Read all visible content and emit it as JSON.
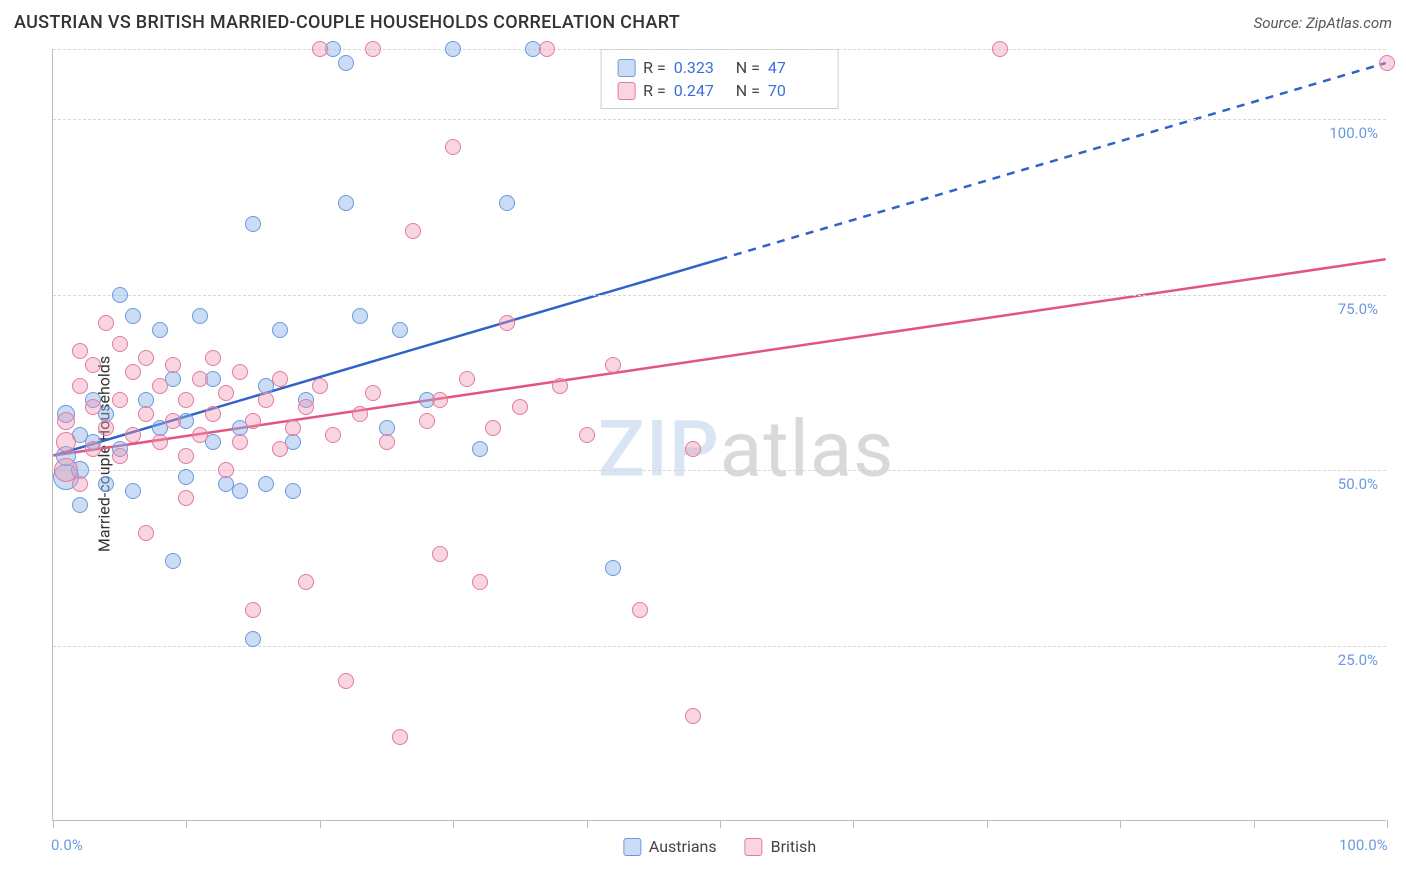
{
  "header": {
    "title": "AUSTRIAN VS BRITISH MARRIED-COUPLE HOUSEHOLDS CORRELATION CHART",
    "source": "Source: ZipAtlas.com"
  },
  "chart": {
    "type": "scatter",
    "ylabel": "Married-couple Households",
    "xlim": [
      0,
      100
    ],
    "ylim": [
      0,
      110
    ],
    "x_ticks": [
      0,
      10,
      20,
      30,
      40,
      50,
      60,
      70,
      80,
      90,
      100
    ],
    "x_tick_labels_shown": {
      "0": "0.0%",
      "100": "100.0%"
    },
    "y_gridlines": [
      25,
      50,
      75,
      100,
      110
    ],
    "y_tick_labels": {
      "25": "25.0%",
      "50": "50.0%",
      "75": "75.0%",
      "100": "100.0%"
    },
    "background_color": "#ffffff",
    "grid_color": "#d8d8d8",
    "axis_color": "#bdbdbd",
    "label_fontsize": 16,
    "tick_label_color": "#6b99e2",
    "marker_radius_range": [
      7,
      13
    ],
    "series": [
      {
        "name": "Austrians",
        "fill_color": "rgba(138,180,232,0.45)",
        "stroke_color": "#6b99e2",
        "line_color": "#2f63c7",
        "line_width": 2.5,
        "trend": {
          "x0": 0,
          "y0": 52,
          "x1_solid": 50,
          "y1_solid": 80,
          "x1": 100,
          "y1": 108,
          "dashed_from": 50
        },
        "R": "0.323",
        "N": "47",
        "points": [
          [
            1,
            49,
            13
          ],
          [
            1,
            52,
            10
          ],
          [
            1,
            58,
            9
          ],
          [
            2,
            55,
            8
          ],
          [
            2,
            50,
            9
          ],
          [
            2,
            45,
            8
          ],
          [
            3,
            54,
            8
          ],
          [
            3,
            60,
            8
          ],
          [
            4,
            48,
            8
          ],
          [
            4,
            58,
            8
          ],
          [
            5,
            53,
            8
          ],
          [
            5,
            75,
            8
          ],
          [
            6,
            72,
            8
          ],
          [
            6,
            47,
            8
          ],
          [
            7,
            60,
            8
          ],
          [
            8,
            70,
            8
          ],
          [
            8,
            56,
            8
          ],
          [
            9,
            63,
            8
          ],
          [
            9,
            37,
            8
          ],
          [
            10,
            57,
            8
          ],
          [
            10,
            49,
            8
          ],
          [
            11,
            72,
            8
          ],
          [
            12,
            54,
            8
          ],
          [
            12,
            63,
            8
          ],
          [
            13,
            48,
            8
          ],
          [
            14,
            56,
            8
          ],
          [
            14,
            47,
            8
          ],
          [
            15,
            85,
            8
          ],
          [
            15,
            26,
            8
          ],
          [
            16,
            62,
            8
          ],
          [
            16,
            48,
            8
          ],
          [
            17,
            70,
            8
          ],
          [
            18,
            54,
            8
          ],
          [
            18,
            47,
            8
          ],
          [
            19,
            60,
            8
          ],
          [
            21,
            110,
            8
          ],
          [
            22,
            88,
            8
          ],
          [
            22,
            108,
            8
          ],
          [
            23,
            72,
            8
          ],
          [
            25,
            56,
            8
          ],
          [
            26,
            70,
            8
          ],
          [
            28,
            60,
            8
          ],
          [
            30,
            110,
            8
          ],
          [
            32,
            53,
            8
          ],
          [
            34,
            88,
            8
          ],
          [
            36,
            110,
            8
          ],
          [
            42,
            36,
            8
          ]
        ]
      },
      {
        "name": "British",
        "fill_color": "rgba(238,150,180,0.40)",
        "stroke_color": "#e37ba0",
        "line_color": "#e3557f",
        "line_width": 2.5,
        "trend": {
          "x0": 0,
          "y0": 52,
          "x1": 100,
          "y1": 80,
          "dashed_from": null
        },
        "R": "0.247",
        "N": "70",
        "points": [
          [
            1,
            50,
            12
          ],
          [
            1,
            54,
            10
          ],
          [
            1,
            57,
            9
          ],
          [
            2,
            48,
            8
          ],
          [
            2,
            62,
            8
          ],
          [
            2,
            67,
            8
          ],
          [
            3,
            53,
            8
          ],
          [
            3,
            59,
            8
          ],
          [
            3,
            65,
            8
          ],
          [
            4,
            56,
            8
          ],
          [
            4,
            71,
            8
          ],
          [
            5,
            52,
            8
          ],
          [
            5,
            60,
            8
          ],
          [
            5,
            68,
            8
          ],
          [
            6,
            55,
            8
          ],
          [
            6,
            64,
            8
          ],
          [
            7,
            58,
            8
          ],
          [
            7,
            66,
            8
          ],
          [
            7,
            41,
            8
          ],
          [
            8,
            54,
            8
          ],
          [
            8,
            62,
            8
          ],
          [
            9,
            57,
            8
          ],
          [
            9,
            65,
            8
          ],
          [
            10,
            60,
            8
          ],
          [
            10,
            52,
            8
          ],
          [
            10,
            46,
            8
          ],
          [
            11,
            63,
            8
          ],
          [
            11,
            55,
            8
          ],
          [
            12,
            58,
            8
          ],
          [
            12,
            66,
            8
          ],
          [
            13,
            50,
            8
          ],
          [
            13,
            61,
            8
          ],
          [
            14,
            54,
            8
          ],
          [
            14,
            64,
            8
          ],
          [
            15,
            57,
            8
          ],
          [
            15,
            30,
            8
          ],
          [
            16,
            60,
            8
          ],
          [
            17,
            53,
            8
          ],
          [
            17,
            63,
            8
          ],
          [
            18,
            56,
            8
          ],
          [
            19,
            59,
            8
          ],
          [
            19,
            34,
            8
          ],
          [
            20,
            62,
            8
          ],
          [
            20,
            110,
            8
          ],
          [
            21,
            55,
            8
          ],
          [
            22,
            20,
            8
          ],
          [
            23,
            58,
            8
          ],
          [
            24,
            61,
            8
          ],
          [
            24,
            110,
            8
          ],
          [
            25,
            54,
            8
          ],
          [
            26,
            12,
            8
          ],
          [
            27,
            84,
            8
          ],
          [
            28,
            57,
            8
          ],
          [
            29,
            60,
            8
          ],
          [
            29,
            38,
            8
          ],
          [
            30,
            96,
            8
          ],
          [
            31,
            63,
            8
          ],
          [
            32,
            34,
            8
          ],
          [
            33,
            56,
            8
          ],
          [
            34,
            71,
            8
          ],
          [
            35,
            59,
            8
          ],
          [
            37,
            110,
            8
          ],
          [
            38,
            62,
            8
          ],
          [
            40,
            55,
            8
          ],
          [
            42,
            65,
            8
          ],
          [
            44,
            30,
            8
          ],
          [
            48,
            15,
            8
          ],
          [
            48,
            53,
            8
          ],
          [
            71,
            110,
            8
          ],
          [
            100,
            108,
            8
          ]
        ]
      }
    ],
    "stats_box": {
      "rows": [
        {
          "swatch_fill": "rgba(138,180,232,0.45)",
          "swatch_stroke": "#6b99e2",
          "r_label": "R =",
          "r_val": "0.323",
          "n_label": "N =",
          "n_val": "47"
        },
        {
          "swatch_fill": "rgba(238,150,180,0.40)",
          "swatch_stroke": "#e37ba0",
          "r_label": "R =",
          "r_val": "0.247",
          "n_label": "N =",
          "n_val": "70"
        }
      ]
    },
    "legend_bottom": [
      {
        "swatch_fill": "rgba(138,180,232,0.45)",
        "swatch_stroke": "#6b99e2",
        "label": "Austrians"
      },
      {
        "swatch_fill": "rgba(238,150,180,0.40)",
        "swatch_stroke": "#e37ba0",
        "label": "British"
      }
    ],
    "watermark": {
      "part1": "ZIP",
      "part2": "atlas"
    }
  }
}
